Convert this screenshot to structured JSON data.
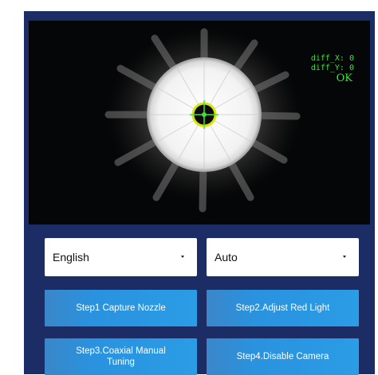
{
  "camera": {
    "readout": {
      "diff_x": "diff_X: 0",
      "diff_y": "diff_Y: 0",
      "status": "OK"
    },
    "colors": {
      "readout": "#3fe03a",
      "target_ring": "#d6e600",
      "target_center": "#3fe03a"
    }
  },
  "controls": {
    "language_select": {
      "value": "English"
    },
    "mode_select": {
      "value": "Auto"
    },
    "buttons": {
      "step1": "Step1 Capture Nozzle",
      "step2": "Step2.Adjust Red Light",
      "step3": "Step3.Coaxial Manual Tuning",
      "step4": "Step4.Disable Camera"
    },
    "colors": {
      "panel": "#1b2d64",
      "button": "#2b9ce6"
    }
  }
}
